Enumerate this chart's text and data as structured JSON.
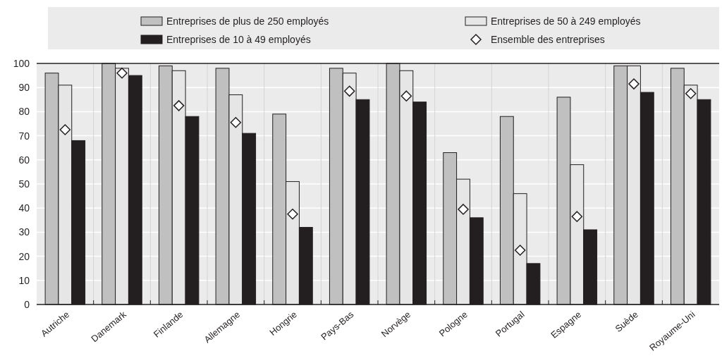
{
  "chart_data": {
    "type": "bar",
    "categories": [
      "Autriche",
      "Danemark",
      "Finlande",
      "Allemagne",
      "Hongrie",
      "Pays-Bas",
      "Norvège",
      "Pologne",
      "Portugal",
      "Espagne",
      "Suède",
      "Royaume-Uni"
    ],
    "series": [
      {
        "name": "Entreprises de plus de 250 employés",
        "color": "#c0c0c0",
        "values": [
          96,
          100,
          99,
          98,
          79,
          98,
          100,
          63,
          78,
          86,
          99,
          98
        ]
      },
      {
        "name": "Entreprises de 50 à 249 employés",
        "color": "#e6e6e6",
        "values": [
          91,
          98,
          97,
          87,
          51,
          96,
          97,
          52,
          46,
          58,
          99,
          91
        ]
      },
      {
        "name": "Entreprises de 10 à 49 employés",
        "color": "#231f20",
        "values": [
          68,
          95,
          78,
          71,
          32,
          85,
          84,
          36,
          17,
          31,
          88,
          85
        ]
      },
      {
        "name": "Ensemble des entreprises",
        "type": "scatter",
        "marker": "diamond",
        "color": "#ffffff",
        "x": [
          "Autriche",
          "Danemark",
          "Finlande",
          "Allemagne",
          "Hongrie",
          "Pays-Bas",
          "Norvège",
          "Pologne",
          "Portugal",
          "Espagne",
          "Suède",
          "Royaume-Uni"
        ],
        "values": [
          72.5,
          96,
          82.5,
          75.5,
          37.5,
          88.5,
          86.5,
          39.5,
          22.5,
          36.5,
          91.5,
          87.5
        ]
      }
    ],
    "ylim": [
      0,
      100
    ],
    "yticks": [
      0,
      10,
      20,
      30,
      40,
      50,
      60,
      70,
      80,
      90,
      100
    ],
    "grid": true,
    "legend": "top"
  }
}
